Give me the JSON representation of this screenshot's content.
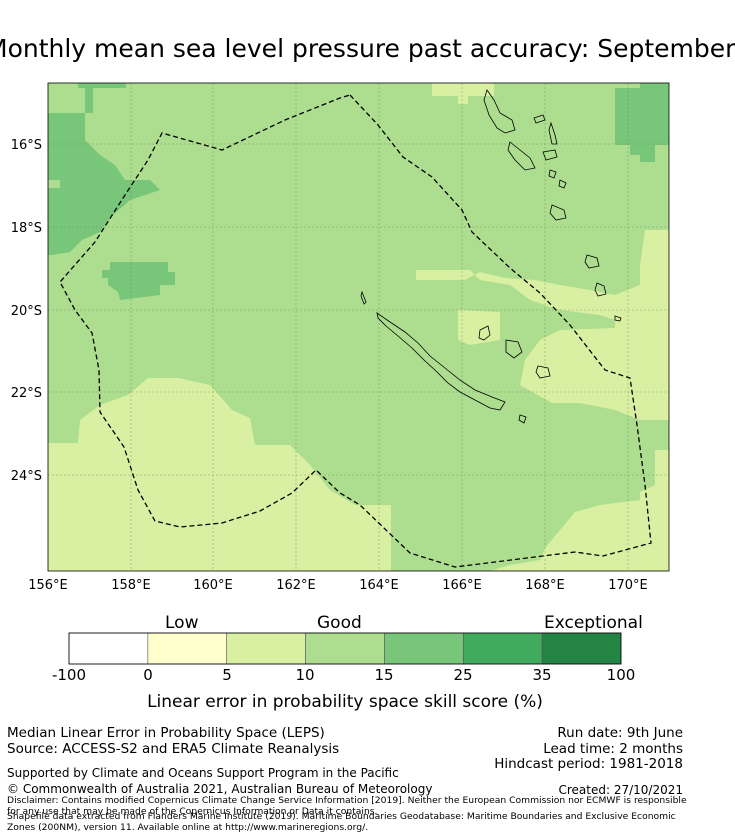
{
  "title": "Monthly mean sea level pressure past accuracy: September",
  "map": {
    "lon_labels": [
      "156°E",
      "158°E",
      "160°E",
      "162°E",
      "164°E",
      "166°E",
      "168°E",
      "170°E"
    ],
    "lat_labels": [
      "16°S",
      "18°S",
      "20°S",
      "22°S",
      "24°S"
    ]
  },
  "colorbar": {
    "categories": [
      "Low",
      "Good",
      "Exceptional"
    ],
    "ticks": [
      "-100",
      "0",
      "5",
      "10",
      "15",
      "25",
      "35",
      "100"
    ],
    "colors": [
      "#ffffff",
      "#ffffcc",
      "#d9f0a3",
      "#addd8e",
      "#78c679",
      "#41ab5d",
      "#238443"
    ],
    "label": "Linear error in probability space skill score (%)"
  },
  "info": {
    "metric": "Median Linear Error in Probability Space (LEPS)",
    "source": "Source: ACCESS-S2 and ERA5 Climate Reanalysis",
    "run_date": "Run date: 9th June",
    "lead_time": "Lead time: 2 months",
    "hindcast": "Hindcast period: 1981-2018",
    "support": "Supported by Climate and Oceans Support Program in the Pacific",
    "copyright": "© Commonwealth of Australia 2021, Australian Bureau of Meteorology",
    "created": "Created: 27/10/2021",
    "disclaimer": "Disclaimer: Contains modified Copernicus Climate Change Service Information [2019]. Neither the European Commission nor ECMWF is responsible for any use that may be made of the Copernicus Information or Data it contains.",
    "shapefile": "Shapefile data extracted from Flanders Marine Institute (2019). Maritime Boundaries Geodatabase: Maritime Boundaries and Exclusive Economic Zones (200NM), version 11. Available online at http://www.marineregions.org/."
  }
}
